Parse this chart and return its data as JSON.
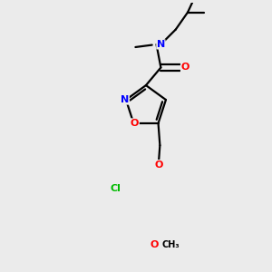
{
  "background_color": "#ebebeb",
  "bond_color": "#000000",
  "bond_width": 1.6,
  "atom_colors": {
    "N": "#0000ff",
    "O": "#ff0000",
    "Cl": "#00bb00",
    "C": "#000000"
  },
  "font_size": 8.0,
  "figsize": [
    3.0,
    3.0
  ],
  "dpi": 100
}
